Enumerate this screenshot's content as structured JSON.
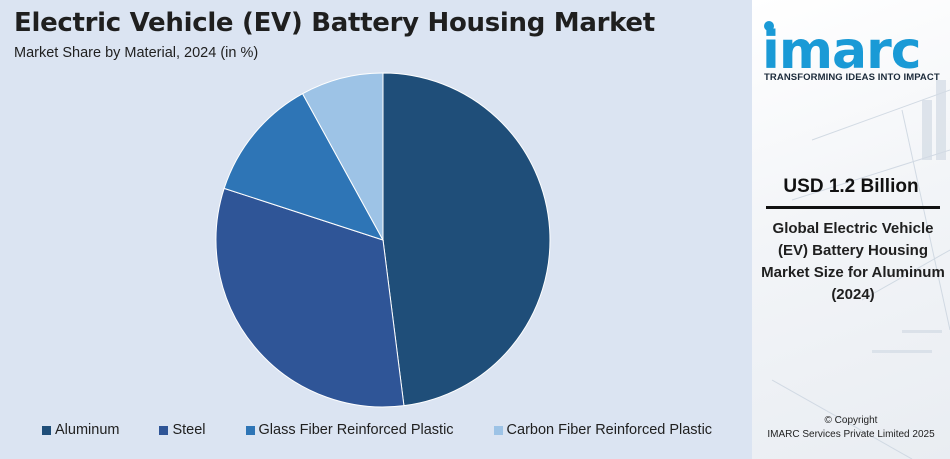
{
  "header": {
    "title": "Electric Vehicle (EV) Battery Housing Market",
    "subtitle": "Market Share by Material, 2024 (in %)"
  },
  "chart_data": {
    "type": "pie",
    "title": "Electric Vehicle (EV) Battery Housing Market",
    "subtitle": "Market Share by Material, 2024 (in %)",
    "legend_position": "bottom",
    "categories": [
      "Aluminum",
      "Steel",
      "Glass Fiber Reinforced Plastic",
      "Carbon Fiber Reinforced Plastic"
    ],
    "values": [
      48,
      32,
      12,
      8
    ],
    "colors": [
      "#1f4e79",
      "#2f5597",
      "#2e75b6",
      "#9dc3e6"
    ]
  },
  "sidebar": {
    "brand": "imarc",
    "tagline": "TRANSFORMING IDEAS INTO IMPACT",
    "value": "USD 1.2 Billion",
    "description": "Global Electric Vehicle (EV) Battery Housing Market Size for Aluminum (2024)",
    "copyright_line1": "© Copyright",
    "copyright_line2": "IMARC Services Private Limited 2025",
    "brand_color": "#1a9ad6"
  }
}
